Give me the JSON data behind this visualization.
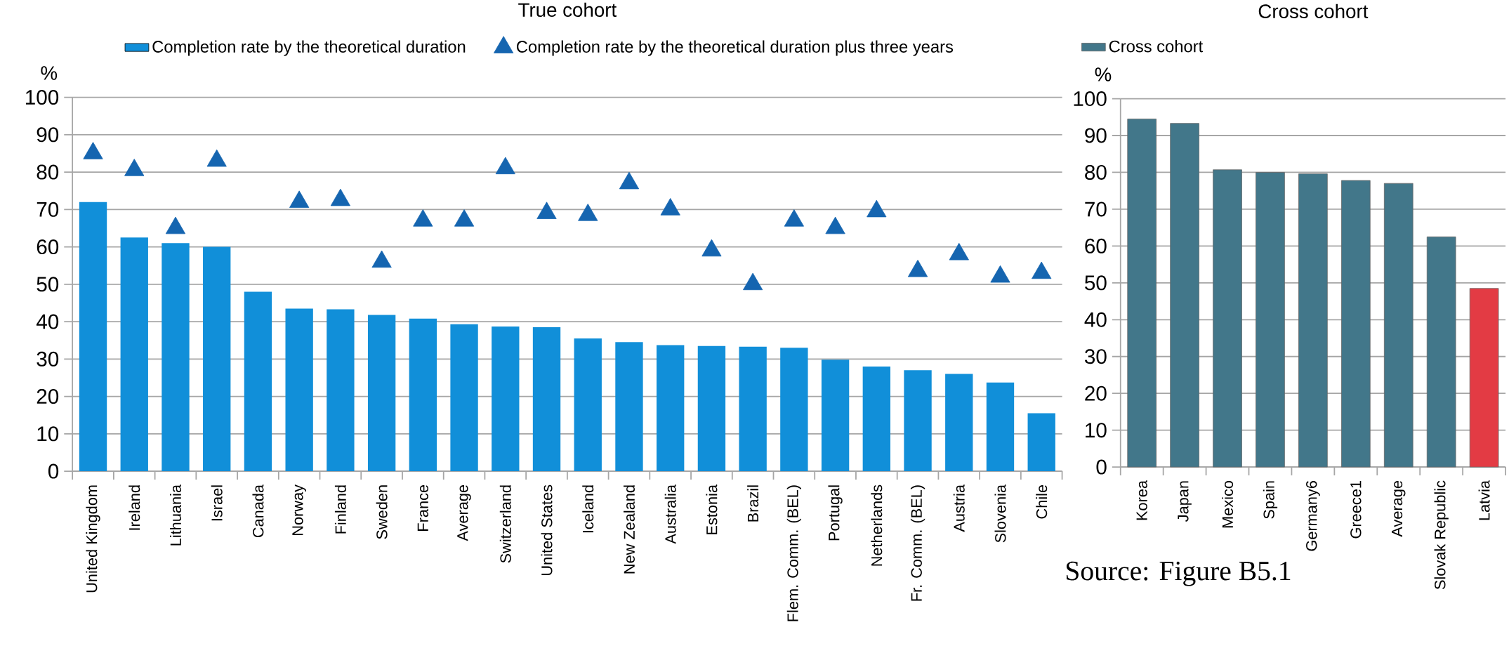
{
  "chart_data": [
    {
      "type": "bar",
      "title": "True cohort",
      "ylabel": "%",
      "categories": [
        "United Kingdom",
        "Ireland",
        "Lithuania",
        "Israel",
        "Canada",
        "Norway",
        "Finland",
        "Sweden",
        "France",
        "Average",
        "Switzerland",
        "United States",
        "Iceland",
        "New Zealand",
        "Australia",
        "Estonia",
        "Brazil",
        "Flem. Comm. (BEL)",
        "Portugal",
        "Netherlands",
        "Fr. Comm. (BEL)",
        "Austria",
        "Slovenia",
        "Chile"
      ],
      "series": [
        {
          "name": "Completion rate by the theoretical duration",
          "color": "#118fd9",
          "values": [
            72,
            62.5,
            61,
            60,
            48,
            43.5,
            43.3,
            41.8,
            40.8,
            39.3,
            38.7,
            38.5,
            35.5,
            34.5,
            33.7,
            33.5,
            33.3,
            33,
            29.8,
            28,
            27,
            26,
            23.7,
            15.5
          ]
        },
        {
          "name": "Completion rate by the theoretical duration plus three years",
          "type": "scatter",
          "marker": "triangle",
          "color": "#1565b0",
          "values": [
            85,
            80.5,
            65,
            83,
            null,
            72,
            72.5,
            56,
            67,
            67,
            81,
            69,
            68.5,
            77,
            70,
            59,
            50,
            67,
            65,
            69.5,
            53.5,
            58,
            52,
            53
          ]
        }
      ],
      "ylim": [
        0,
        100
      ],
      "yticks": [
        0,
        10,
        20,
        30,
        40,
        50,
        60,
        70,
        80,
        90,
        100
      ],
      "grid": "y",
      "legend": "top"
    },
    {
      "type": "bar",
      "title": "Cross cohort",
      "ylabel": "%",
      "categories": [
        "Korea",
        "Japan",
        "Mexico",
        "Spain",
        "Germany6",
        "Greece1",
        "Average",
        "Slovak Republic",
        "Latvia"
      ],
      "series": [
        {
          "name": "Cross cohort",
          "color": "#42778a",
          "colors": [
            "#42778a",
            "#42778a",
            "#42778a",
            "#42778a",
            "#42778a",
            "#42778a",
            "#42778a",
            "#42778a",
            "#e33b44"
          ],
          "values": [
            94.5,
            93.3,
            80.7,
            80,
            79.6,
            77.8,
            77,
            62.5,
            48.5
          ]
        }
      ],
      "ylim": [
        0,
        100
      ],
      "yticks": [
        0,
        10,
        20,
        30,
        40,
        50,
        60,
        70,
        80,
        90,
        100
      ],
      "grid": "y",
      "legend": "top",
      "annotations": [
        "Source: Figure B5.1"
      ]
    }
  ]
}
